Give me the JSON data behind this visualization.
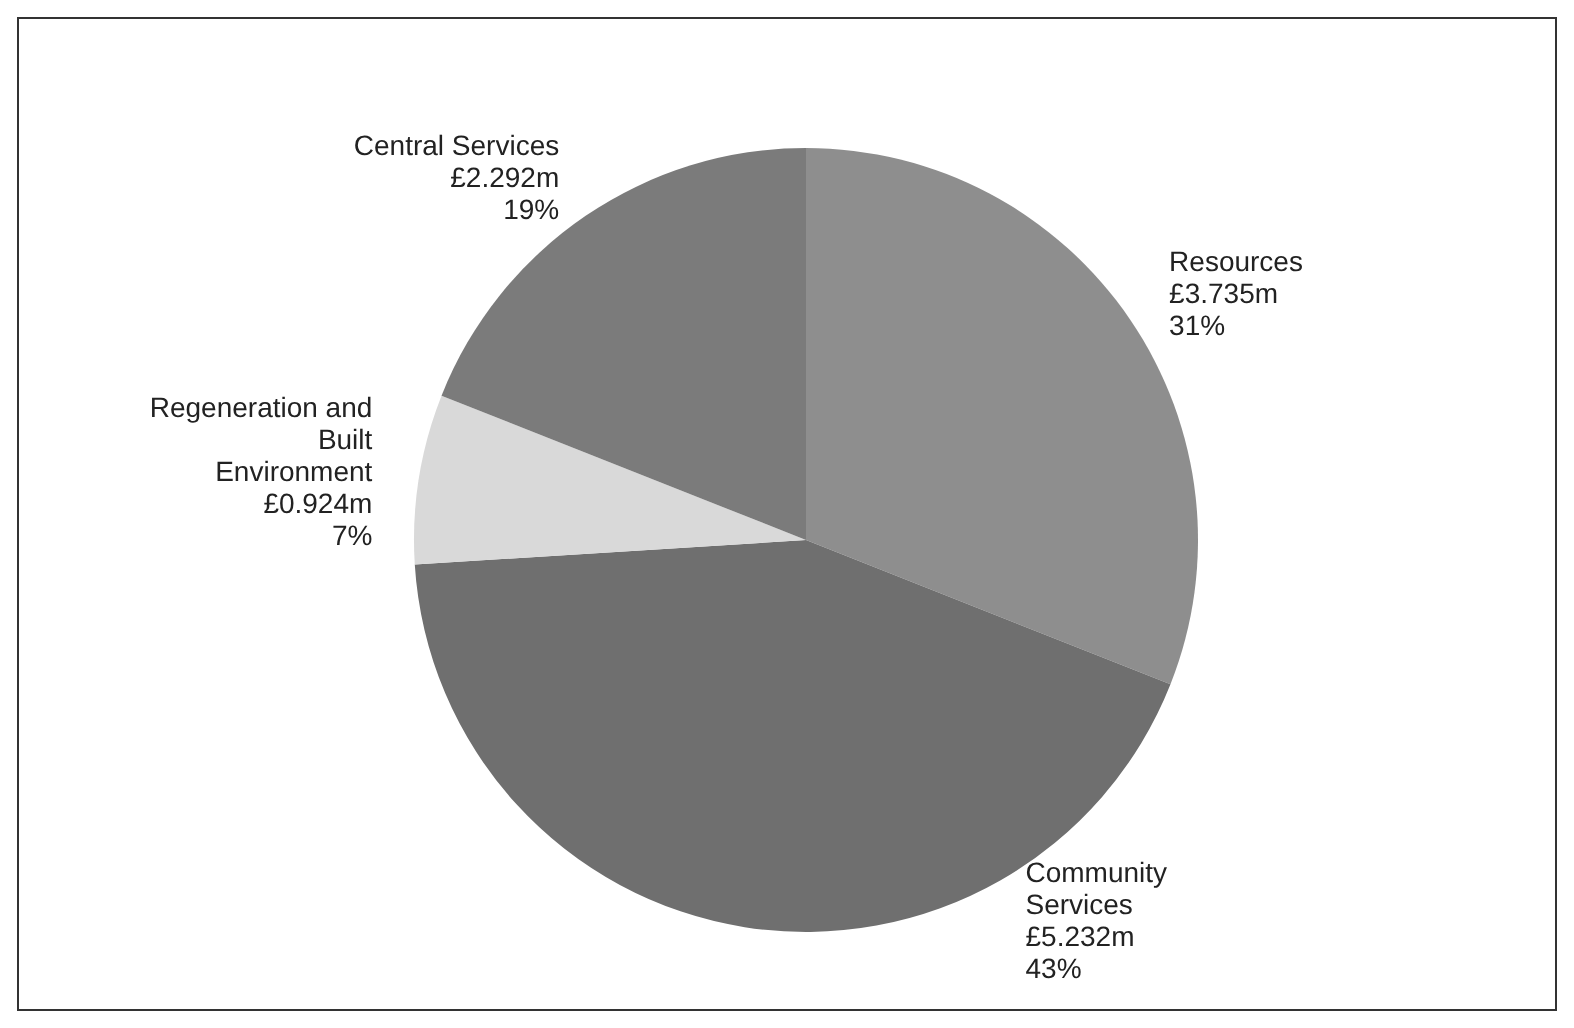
{
  "chart_data": {
    "type": "pie",
    "categories": [
      "Resources",
      "Community Services",
      "Regeneration and Built Environment",
      "Central Services"
    ],
    "values": [
      31,
      43,
      7,
      19
    ],
    "value_labels": [
      "£3.735m\n31%",
      "£5.232m\n43%",
      "£0.924m\n7%",
      "£2.292m\n19%"
    ],
    "colors": [
      "#8e8e8e",
      "#6f6f6f",
      "#d9d9d9",
      "#7b7b7b"
    ]
  }
}
